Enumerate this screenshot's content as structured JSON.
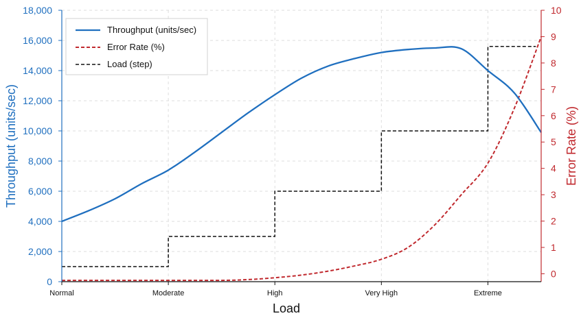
{
  "chart_data": {
    "type": "line",
    "title": "",
    "xlabel": "Load",
    "ylabel_left": "Throughput (units/sec)",
    "ylabel_right": "Error Rate (%)",
    "x_categories": [
      "Normal",
      "Moderate",
      "High",
      "Very High",
      "Extreme"
    ],
    "x_range": [
      0,
      4.5
    ],
    "ylim_left": [
      0,
      18000
    ],
    "ylim_right": [
      -0.3,
      10
    ],
    "yticks_left": [
      0,
      2000,
      4000,
      6000,
      8000,
      10000,
      12000,
      14000,
      16000,
      18000
    ],
    "yticks_left_labels": [
      "0",
      "2,000",
      "4,000",
      "6,000",
      "8,000",
      "10,000",
      "12,000",
      "14,000",
      "16,000",
      "18,000"
    ],
    "yticks_right": [
      0,
      1,
      2,
      3,
      4,
      5,
      6,
      7,
      8,
      9,
      10
    ],
    "yticks_right_labels": [
      "0",
      "1",
      "2",
      "3",
      "4",
      "5",
      "6",
      "7",
      "8",
      "9",
      "10"
    ],
    "grid": true,
    "legend_position": "top-left",
    "colors": {
      "throughput": "#1f6fbf",
      "error_rate": "#c0282d",
      "load": "#111111"
    },
    "series": [
      {
        "name": "Throughput (units/sec)",
        "axis": "left",
        "style": "solid",
        "x": [
          0,
          0.25,
          0.5,
          0.75,
          1.0,
          1.25,
          1.5,
          1.75,
          2.0,
          2.25,
          2.5,
          2.75,
          3.0,
          3.25,
          3.5,
          3.75,
          4.0,
          4.25,
          4.5
        ],
        "y": [
          4000,
          4700,
          5500,
          6500,
          7400,
          8600,
          9900,
          11200,
          12400,
          13500,
          14300,
          14800,
          15200,
          15400,
          15500,
          15450,
          14000,
          12500,
          9900
        ]
      },
      {
        "name": "Error Rate (%)",
        "axis": "right",
        "style": "dashed",
        "x": [
          0,
          0.5,
          1.0,
          1.5,
          1.75,
          2.0,
          2.25,
          2.5,
          2.75,
          3.0,
          3.25,
          3.5,
          3.75,
          4.0,
          4.25,
          4.5
        ],
        "y": [
          -0.25,
          -0.25,
          -0.25,
          -0.25,
          -0.22,
          -0.15,
          -0.05,
          0.1,
          0.3,
          0.55,
          1.0,
          1.85,
          3.0,
          4.2,
          6.3,
          9.0
        ]
      },
      {
        "name": "Load (step)",
        "axis": "left",
        "style": "dashed-step",
        "x": [
          0,
          1.0,
          1.0,
          2.0,
          2.0,
          3.0,
          3.0,
          4.0,
          4.0,
          4.45
        ],
        "y": [
          1000,
          1000,
          3000,
          3000,
          6000,
          6000,
          10000,
          10000,
          15600,
          15600
        ]
      }
    ]
  }
}
